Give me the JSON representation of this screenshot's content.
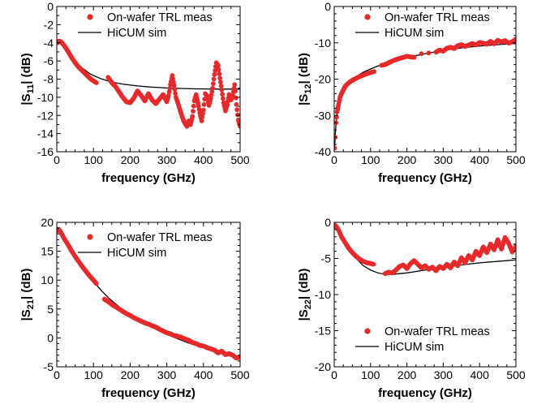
{
  "chart_data": [
    {
      "id": "s11",
      "type": "scatter",
      "ylabel_main": "|S",
      "ylabel_sub": "11",
      "ylabel_end": "| (dB)",
      "xlabel": "frequency (GHz)",
      "xlim": [
        0,
        500
      ],
      "ylim": [
        -16,
        0
      ],
      "xticks": [
        0,
        100,
        200,
        300,
        400,
        500
      ],
      "yticks": [
        -16,
        -14,
        -12,
        -10,
        -8,
        -6,
        -4,
        -2,
        0
      ],
      "legend_position": "top-right",
      "series": [
        {
          "name": "On-wafer TRL meas",
          "kind": "markers",
          "color": "#e8282a",
          "x": [
            2,
            6,
            12,
            20,
            30,
            40,
            50,
            60,
            70,
            80,
            90,
            100,
            108,
            140,
            150,
            160,
            170,
            180,
            190,
            200,
            210,
            220,
            230,
            240,
            250,
            260,
            270,
            280,
            290,
            300,
            305,
            310,
            315,
            320,
            325,
            330,
            340,
            345,
            350,
            355,
            360,
            365,
            370,
            375,
            380,
            385,
            390,
            395,
            400,
            405,
            410,
            415,
            420,
            425,
            430,
            435,
            440,
            445,
            450,
            455,
            460,
            465,
            470,
            475,
            480,
            485,
            490,
            495,
            500
          ],
          "y": [
            -4.0,
            -3.8,
            -3.9,
            -4.3,
            -4.9,
            -5.6,
            -6.2,
            -6.7,
            -7.1,
            -7.5,
            -7.9,
            -8.2,
            -8.4,
            -7.8,
            -8.4,
            -8.8,
            -9.4,
            -10.0,
            -10.5,
            -10.6,
            -10.1,
            -9.3,
            -9.8,
            -10.4,
            -9.6,
            -10.3,
            -10.7,
            -10.2,
            -9.7,
            -10.5,
            -9.8,
            -8.6,
            -7.6,
            -8.7,
            -10.0,
            -10.6,
            -11.9,
            -12.5,
            -12.9,
            -13.2,
            -12.6,
            -13.0,
            -12.1,
            -10.4,
            -9.7,
            -10.6,
            -11.7,
            -12.6,
            -11.4,
            -9.6,
            -9.9,
            -10.9,
            -10.1,
            -9.0,
            -7.5,
            -6.2,
            -6.5,
            -7.9,
            -9.2,
            -10.6,
            -11.5,
            -10.8,
            -9.7,
            -10.3,
            -9.8,
            -8.6,
            -10.8,
            -12.5,
            -13.2
          ]
        },
        {
          "name": "HiCUM sim",
          "kind": "line",
          "color": "#000000",
          "x": [
            0,
            10,
            20,
            30,
            40,
            50,
            60,
            70,
            80,
            90,
            100,
            120,
            140,
            160,
            180,
            200,
            220,
            240,
            260,
            280,
            300,
            320,
            340,
            360,
            380,
            400,
            420,
            440,
            460,
            480,
            500
          ],
          "y": [
            -3.8,
            -4.1,
            -4.5,
            -5.0,
            -5.5,
            -6.0,
            -6.4,
            -6.8,
            -7.1,
            -7.4,
            -7.6,
            -7.95,
            -8.2,
            -8.4,
            -8.55,
            -8.65,
            -8.75,
            -8.82,
            -8.88,
            -8.93,
            -8.97,
            -9.0,
            -9.03,
            -9.05,
            -9.07,
            -9.08,
            -9.09,
            -9.1,
            -9.1,
            -9.1,
            -9.1
          ]
        }
      ]
    },
    {
      "id": "s12",
      "type": "scatter",
      "ylabel_main": "|S",
      "ylabel_sub": "12",
      "ylabel_end": "| (dB)",
      "xlabel": "frequency (GHz)",
      "xlim": [
        0,
        500
      ],
      "ylim": [
        -40,
        0
      ],
      "xticks": [
        0,
        100,
        200,
        300,
        400,
        500
      ],
      "yticks": [
        -40,
        -30,
        -20,
        -10,
        0
      ],
      "legend_position": "top-right",
      "series": [
        {
          "name": "On-wafer TRL meas",
          "kind": "markers",
          "color": "#e8282a",
          "x": [
            1,
            3,
            5,
            8,
            12,
            16,
            20,
            25,
            30,
            40,
            50,
            60,
            70,
            80,
            90,
            100,
            110,
            130,
            140,
            150,
            160,
            170,
            180,
            190,
            200,
            210,
            220,
            240,
            260,
            280,
            290,
            300,
            310,
            320,
            330,
            340,
            350,
            360,
            370,
            380,
            390,
            400,
            410,
            420,
            430,
            440,
            450,
            460,
            470,
            480,
            490,
            500
          ],
          "y": [
            -39,
            -36,
            -32,
            -29,
            -27,
            -25,
            -24,
            -23,
            -22,
            -21,
            -20.3,
            -19.8,
            -19.3,
            -18.9,
            -18.5,
            -18.2,
            -17.9,
            -16.2,
            -16.0,
            -15.5,
            -15.0,
            -14.6,
            -14.3,
            -14.0,
            -13.7,
            -13.9,
            -14.0,
            -13.0,
            -12.8,
            -12.6,
            -12.0,
            -12.3,
            -11.5,
            -11.2,
            -11.6,
            -10.8,
            -10.5,
            -11.0,
            -10.6,
            -10.2,
            -10.6,
            -9.9,
            -10.1,
            -10.4,
            -9.6,
            -10.3,
            -9.3,
            -9.8,
            -9.4,
            -10.1,
            -9.7,
            -9.0
          ]
        },
        {
          "name": "HiCUM sim",
          "kind": "line",
          "color": "#000000",
          "x": [
            1,
            3,
            6,
            10,
            15,
            20,
            30,
            40,
            60,
            80,
            100,
            120,
            150,
            180,
            200,
            250,
            300,
            350,
            400,
            450,
            500
          ],
          "y": [
            -39,
            -35,
            -31,
            -28,
            -25.5,
            -24,
            -22,
            -20.8,
            -19.3,
            -18.1,
            -17.2,
            -16.4,
            -15.4,
            -14.6,
            -14.1,
            -13.0,
            -12.1,
            -11.4,
            -10.9,
            -10.5,
            -10.2
          ]
        }
      ]
    },
    {
      "id": "s21",
      "type": "scatter",
      "ylabel_main": "|S",
      "ylabel_sub": "21",
      "ylabel_end": "| (dB)",
      "xlabel": "frequency (GHz)",
      "xlim": [
        0,
        500
      ],
      "ylim": [
        -5,
        20
      ],
      "xticks": [
        0,
        100,
        200,
        300,
        400,
        500
      ],
      "yticks": [
        -5,
        0,
        5,
        10,
        15,
        20
      ],
      "legend_position": "top-right",
      "series": [
        {
          "name": "On-wafer TRL meas",
          "kind": "markers",
          "color": "#e8282a",
          "x": [
            0,
            5,
            10,
            15,
            20,
            30,
            40,
            50,
            60,
            70,
            80,
            90,
            100,
            108,
            130,
            140,
            150,
            160,
            170,
            180,
            190,
            200,
            210,
            220,
            230,
            240,
            250,
            260,
            270,
            280,
            290,
            300,
            310,
            320,
            330,
            340,
            350,
            360,
            370,
            380,
            390,
            400,
            410,
            420,
            430,
            440,
            450,
            460,
            470,
            480,
            490,
            500
          ],
          "y": [
            18.5,
            18.8,
            18.4,
            17.8,
            17.2,
            16.2,
            15.1,
            14.1,
            13.2,
            12.3,
            11.5,
            10.7,
            10.0,
            9.4,
            6.7,
            6.3,
            5.8,
            5.4,
            5.0,
            4.6,
            4.2,
            3.9,
            3.5,
            3.2,
            2.9,
            2.6,
            2.4,
            2.1,
            1.9,
            1.5,
            1.2,
            0.9,
            0.7,
            0.4,
            0.3,
            0.1,
            -0.2,
            -0.4,
            -0.8,
            -1.0,
            -1.3,
            -1.4,
            -1.7,
            -1.9,
            -2.1,
            -2.6,
            -2.3,
            -2.9,
            -2.7,
            -3.0,
            -3.5,
            -3.3
          ]
        },
        {
          "name": "HiCUM sim",
          "kind": "line",
          "color": "#000000",
          "x": [
            0,
            20,
            40,
            60,
            80,
            100,
            120,
            140,
            160,
            180,
            200,
            220,
            240,
            260,
            280,
            300,
            320,
            340,
            360,
            380,
            400,
            420,
            440,
            460,
            480,
            500
          ],
          "y": [
            19.2,
            17.2,
            15.2,
            13.3,
            11.5,
            9.8,
            8.3,
            7.0,
            5.9,
            4.9,
            4.0,
            3.2,
            2.5,
            1.8,
            1.2,
            0.6,
            0.1,
            -0.4,
            -0.9,
            -1.3,
            -1.7,
            -2.1,
            -2.5,
            -2.8,
            -3.1,
            -3.4
          ]
        }
      ]
    },
    {
      "id": "s22",
      "type": "scatter",
      "ylabel_main": "|S",
      "ylabel_sub": "22",
      "ylabel_end": "| (dB)",
      "xlabel": "frequency (GHz)",
      "xlim": [
        0,
        500
      ],
      "ylim": [
        -20,
        0
      ],
      "xticks": [
        0,
        100,
        200,
        300,
        400,
        500
      ],
      "yticks": [
        -20,
        -15,
        -10,
        -5,
        0
      ],
      "legend_position": "bottom-right",
      "series": [
        {
          "name": "On-wafer TRL meas",
          "kind": "markers",
          "color": "#e8282a",
          "x": [
            2,
            6,
            10,
            15,
            20,
            30,
            40,
            50,
            60,
            70,
            80,
            90,
            100,
            108,
            140,
            150,
            160,
            170,
            180,
            190,
            200,
            210,
            220,
            230,
            240,
            250,
            260,
            270,
            280,
            290,
            300,
            310,
            320,
            330,
            340,
            350,
            360,
            370,
            380,
            390,
            400,
            410,
            420,
            430,
            440,
            450,
            460,
            470,
            480,
            490,
            500
          ],
          "y": [
            -0.4,
            -0.6,
            -0.9,
            -1.4,
            -2.0,
            -2.8,
            -3.6,
            -4.2,
            -4.7,
            -5.1,
            -5.4,
            -5.6,
            -5.7,
            -5.8,
            -7.1,
            -6.9,
            -7.0,
            -6.6,
            -6.1,
            -5.9,
            -6.4,
            -5.7,
            -5.3,
            -5.8,
            -6.3,
            -6.0,
            -6.5,
            -6.2,
            -6.7,
            -6.1,
            -6.4,
            -5.8,
            -6.3,
            -5.5,
            -6.0,
            -4.9,
            -5.6,
            -4.6,
            -5.2,
            -4.0,
            -4.6,
            -3.4,
            -4.2,
            -3.0,
            -3.8,
            -2.4,
            -3.7,
            -2.1,
            -2.9,
            -4.1,
            -3.3
          ]
        },
        {
          "name": "HiCUM sim",
          "kind": "line",
          "color": "#000000",
          "x": [
            0,
            10,
            20,
            30,
            40,
            50,
            60,
            80,
            100,
            120,
            140,
            160,
            180,
            200,
            250,
            300,
            350,
            400,
            450,
            500
          ],
          "y": [
            -0.3,
            -0.8,
            -1.6,
            -2.6,
            -3.5,
            -4.3,
            -5.0,
            -6.0,
            -6.6,
            -7.0,
            -7.2,
            -7.2,
            -7.1,
            -7.0,
            -6.6,
            -6.2,
            -5.9,
            -5.6,
            -5.4,
            -5.2
          ]
        }
      ]
    }
  ]
}
